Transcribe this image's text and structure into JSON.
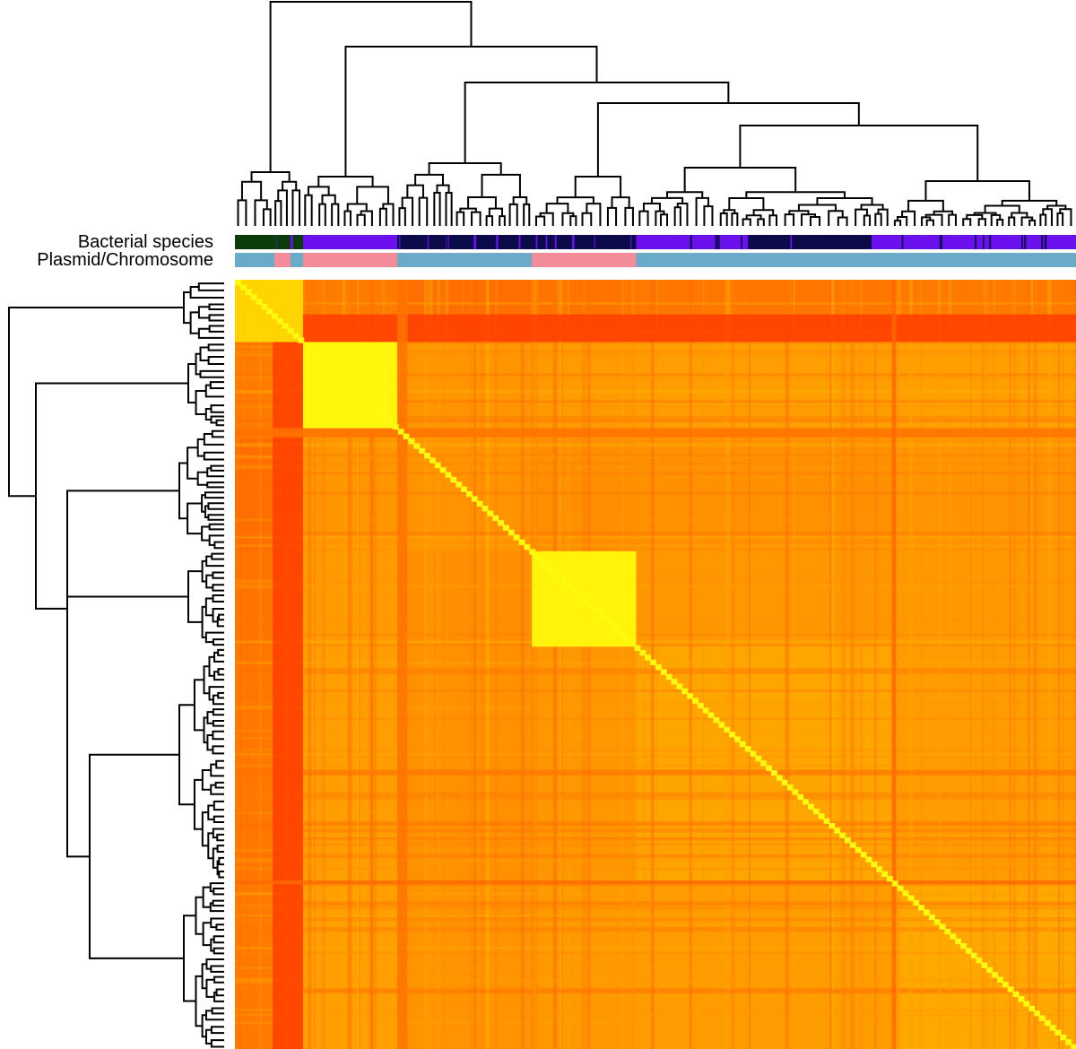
{
  "chart_data": {
    "type": "heatmap",
    "title": "",
    "annotation_tracks": [
      {
        "label": "Bacterial species",
        "segments": [
          {
            "from": 0.0,
            "to": 0.049,
            "color": "#0b3d0b"
          },
          {
            "from": 0.049,
            "to": 0.05,
            "color": "#3a1f9a"
          },
          {
            "from": 0.05,
            "to": 0.066,
            "color": "#0b3d0b"
          },
          {
            "from": 0.066,
            "to": 0.069,
            "color": "#6a11ee"
          },
          {
            "from": 0.069,
            "to": 0.081,
            "color": "#0b3d0b"
          },
          {
            "from": 0.081,
            "to": 0.193,
            "color": "#6a11ee"
          },
          {
            "from": 0.193,
            "to": 0.353,
            "color": "#0b0a4a"
          },
          {
            "from": 0.353,
            "to": 0.477,
            "color": "#0b0a4a"
          },
          {
            "from": 0.477,
            "to": 0.61,
            "color": "#6a11ee"
          },
          {
            "from": 0.61,
            "to": 0.757,
            "color": "#0b0a4a"
          },
          {
            "from": 0.757,
            "to": 1.0,
            "color": "#6a11ee"
          }
        ]
      },
      {
        "label": "Plasmid/Chromosome",
        "segments": [
          {
            "from": 0.0,
            "to": 0.047,
            "color": "#6aabc9"
          },
          {
            "from": 0.047,
            "to": 0.066,
            "color": "#f48b98"
          },
          {
            "from": 0.066,
            "to": 0.081,
            "color": "#6aabc9"
          },
          {
            "from": 0.081,
            "to": 0.193,
            "color": "#f48b98"
          },
          {
            "from": 0.193,
            "to": 0.353,
            "color": "#6aabc9"
          },
          {
            "from": 0.353,
            "to": 0.477,
            "color": "#f48b98"
          },
          {
            "from": 0.477,
            "to": 1.0,
            "color": "#6aabc9"
          }
        ]
      }
    ],
    "clusters": [
      {
        "from": 0.0,
        "to": 0.081,
        "level": 0.25
      },
      {
        "from": 0.081,
        "to": 0.193,
        "level": 0.62
      },
      {
        "from": 0.193,
        "to": 0.353,
        "level": 0.5
      },
      {
        "from": 0.353,
        "to": 0.477,
        "level": 0.55
      },
      {
        "from": 0.477,
        "to": 0.781,
        "level": 0.58
      },
      {
        "from": 0.781,
        "to": 1.0,
        "level": 0.6
      }
    ],
    "blocks": [
      {
        "from": 0.353,
        "to": 0.477,
        "level": 0.95
      },
      {
        "from": 0.081,
        "to": 0.193,
        "level": 0.96
      },
      {
        "from": 0.0,
        "to": 0.081,
        "level": 0.8
      }
    ],
    "dark_stripes": [
      {
        "from": 0.045,
        "to": 0.081,
        "level": 0.1
      },
      {
        "from": 0.193,
        "to": 0.205,
        "level": 0.35
      },
      {
        "from": 0.781,
        "to": 0.786,
        "level": 0.3
      }
    ],
    "diagonal": "high similarity along the main diagonal",
    "colormap": [
      "#ff2a00",
      "#ff7a00",
      "#ffb000",
      "#ffff00"
    ],
    "row_dendrogram": "hierarchical clustering tree on the left",
    "column_dendrogram": "hierarchical clustering tree on the top"
  }
}
